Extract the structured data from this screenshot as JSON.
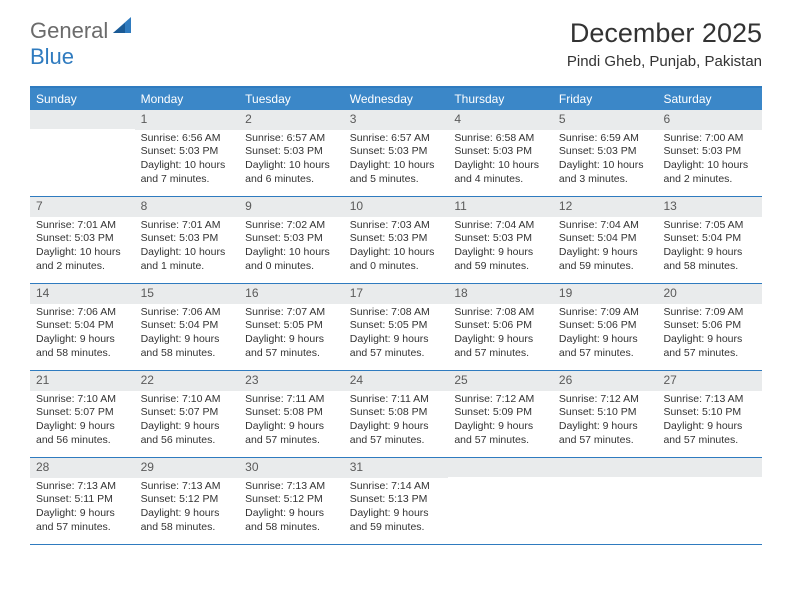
{
  "logo": {
    "word1": "General",
    "word2": "Blue"
  },
  "title": "December 2025",
  "location": "Pindi Gheb, Punjab, Pakistan",
  "colors": {
    "brand_blue": "#3b87c8",
    "brand_dark": "#2f7bbf",
    "day_num_bg": "#e9ebec",
    "text": "#333333",
    "logo_gray": "#6b6b6b"
  },
  "day_headers": [
    "Sunday",
    "Monday",
    "Tuesday",
    "Wednesday",
    "Thursday",
    "Friday",
    "Saturday"
  ],
  "weeks": [
    [
      null,
      {
        "n": "1",
        "sr": "Sunrise: 6:56 AM",
        "ss": "Sunset: 5:03 PM",
        "dl": "Daylight: 10 hours and 7 minutes."
      },
      {
        "n": "2",
        "sr": "Sunrise: 6:57 AM",
        "ss": "Sunset: 5:03 PM",
        "dl": "Daylight: 10 hours and 6 minutes."
      },
      {
        "n": "3",
        "sr": "Sunrise: 6:57 AM",
        "ss": "Sunset: 5:03 PM",
        "dl": "Daylight: 10 hours and 5 minutes."
      },
      {
        "n": "4",
        "sr": "Sunrise: 6:58 AM",
        "ss": "Sunset: 5:03 PM",
        "dl": "Daylight: 10 hours and 4 minutes."
      },
      {
        "n": "5",
        "sr": "Sunrise: 6:59 AM",
        "ss": "Sunset: 5:03 PM",
        "dl": "Daylight: 10 hours and 3 minutes."
      },
      {
        "n": "6",
        "sr": "Sunrise: 7:00 AM",
        "ss": "Sunset: 5:03 PM",
        "dl": "Daylight: 10 hours and 2 minutes."
      }
    ],
    [
      {
        "n": "7",
        "sr": "Sunrise: 7:01 AM",
        "ss": "Sunset: 5:03 PM",
        "dl": "Daylight: 10 hours and 2 minutes."
      },
      {
        "n": "8",
        "sr": "Sunrise: 7:01 AM",
        "ss": "Sunset: 5:03 PM",
        "dl": "Daylight: 10 hours and 1 minute."
      },
      {
        "n": "9",
        "sr": "Sunrise: 7:02 AM",
        "ss": "Sunset: 5:03 PM",
        "dl": "Daylight: 10 hours and 0 minutes."
      },
      {
        "n": "10",
        "sr": "Sunrise: 7:03 AM",
        "ss": "Sunset: 5:03 PM",
        "dl": "Daylight: 10 hours and 0 minutes."
      },
      {
        "n": "11",
        "sr": "Sunrise: 7:04 AM",
        "ss": "Sunset: 5:03 PM",
        "dl": "Daylight: 9 hours and 59 minutes."
      },
      {
        "n": "12",
        "sr": "Sunrise: 7:04 AM",
        "ss": "Sunset: 5:04 PM",
        "dl": "Daylight: 9 hours and 59 minutes."
      },
      {
        "n": "13",
        "sr": "Sunrise: 7:05 AM",
        "ss": "Sunset: 5:04 PM",
        "dl": "Daylight: 9 hours and 58 minutes."
      }
    ],
    [
      {
        "n": "14",
        "sr": "Sunrise: 7:06 AM",
        "ss": "Sunset: 5:04 PM",
        "dl": "Daylight: 9 hours and 58 minutes."
      },
      {
        "n": "15",
        "sr": "Sunrise: 7:06 AM",
        "ss": "Sunset: 5:04 PM",
        "dl": "Daylight: 9 hours and 58 minutes."
      },
      {
        "n": "16",
        "sr": "Sunrise: 7:07 AM",
        "ss": "Sunset: 5:05 PM",
        "dl": "Daylight: 9 hours and 57 minutes."
      },
      {
        "n": "17",
        "sr": "Sunrise: 7:08 AM",
        "ss": "Sunset: 5:05 PM",
        "dl": "Daylight: 9 hours and 57 minutes."
      },
      {
        "n": "18",
        "sr": "Sunrise: 7:08 AM",
        "ss": "Sunset: 5:06 PM",
        "dl": "Daylight: 9 hours and 57 minutes."
      },
      {
        "n": "19",
        "sr": "Sunrise: 7:09 AM",
        "ss": "Sunset: 5:06 PM",
        "dl": "Daylight: 9 hours and 57 minutes."
      },
      {
        "n": "20",
        "sr": "Sunrise: 7:09 AM",
        "ss": "Sunset: 5:06 PM",
        "dl": "Daylight: 9 hours and 57 minutes."
      }
    ],
    [
      {
        "n": "21",
        "sr": "Sunrise: 7:10 AM",
        "ss": "Sunset: 5:07 PM",
        "dl": "Daylight: 9 hours and 56 minutes."
      },
      {
        "n": "22",
        "sr": "Sunrise: 7:10 AM",
        "ss": "Sunset: 5:07 PM",
        "dl": "Daylight: 9 hours and 56 minutes."
      },
      {
        "n": "23",
        "sr": "Sunrise: 7:11 AM",
        "ss": "Sunset: 5:08 PM",
        "dl": "Daylight: 9 hours and 57 minutes."
      },
      {
        "n": "24",
        "sr": "Sunrise: 7:11 AM",
        "ss": "Sunset: 5:08 PM",
        "dl": "Daylight: 9 hours and 57 minutes."
      },
      {
        "n": "25",
        "sr": "Sunrise: 7:12 AM",
        "ss": "Sunset: 5:09 PM",
        "dl": "Daylight: 9 hours and 57 minutes."
      },
      {
        "n": "26",
        "sr": "Sunrise: 7:12 AM",
        "ss": "Sunset: 5:10 PM",
        "dl": "Daylight: 9 hours and 57 minutes."
      },
      {
        "n": "27",
        "sr": "Sunrise: 7:13 AM",
        "ss": "Sunset: 5:10 PM",
        "dl": "Daylight: 9 hours and 57 minutes."
      }
    ],
    [
      {
        "n": "28",
        "sr": "Sunrise: 7:13 AM",
        "ss": "Sunset: 5:11 PM",
        "dl": "Daylight: 9 hours and 57 minutes."
      },
      {
        "n": "29",
        "sr": "Sunrise: 7:13 AM",
        "ss": "Sunset: 5:12 PM",
        "dl": "Daylight: 9 hours and 58 minutes."
      },
      {
        "n": "30",
        "sr": "Sunrise: 7:13 AM",
        "ss": "Sunset: 5:12 PM",
        "dl": "Daylight: 9 hours and 58 minutes."
      },
      {
        "n": "31",
        "sr": "Sunrise: 7:14 AM",
        "ss": "Sunset: 5:13 PM",
        "dl": "Daylight: 9 hours and 59 minutes."
      },
      null,
      null,
      null
    ]
  ]
}
